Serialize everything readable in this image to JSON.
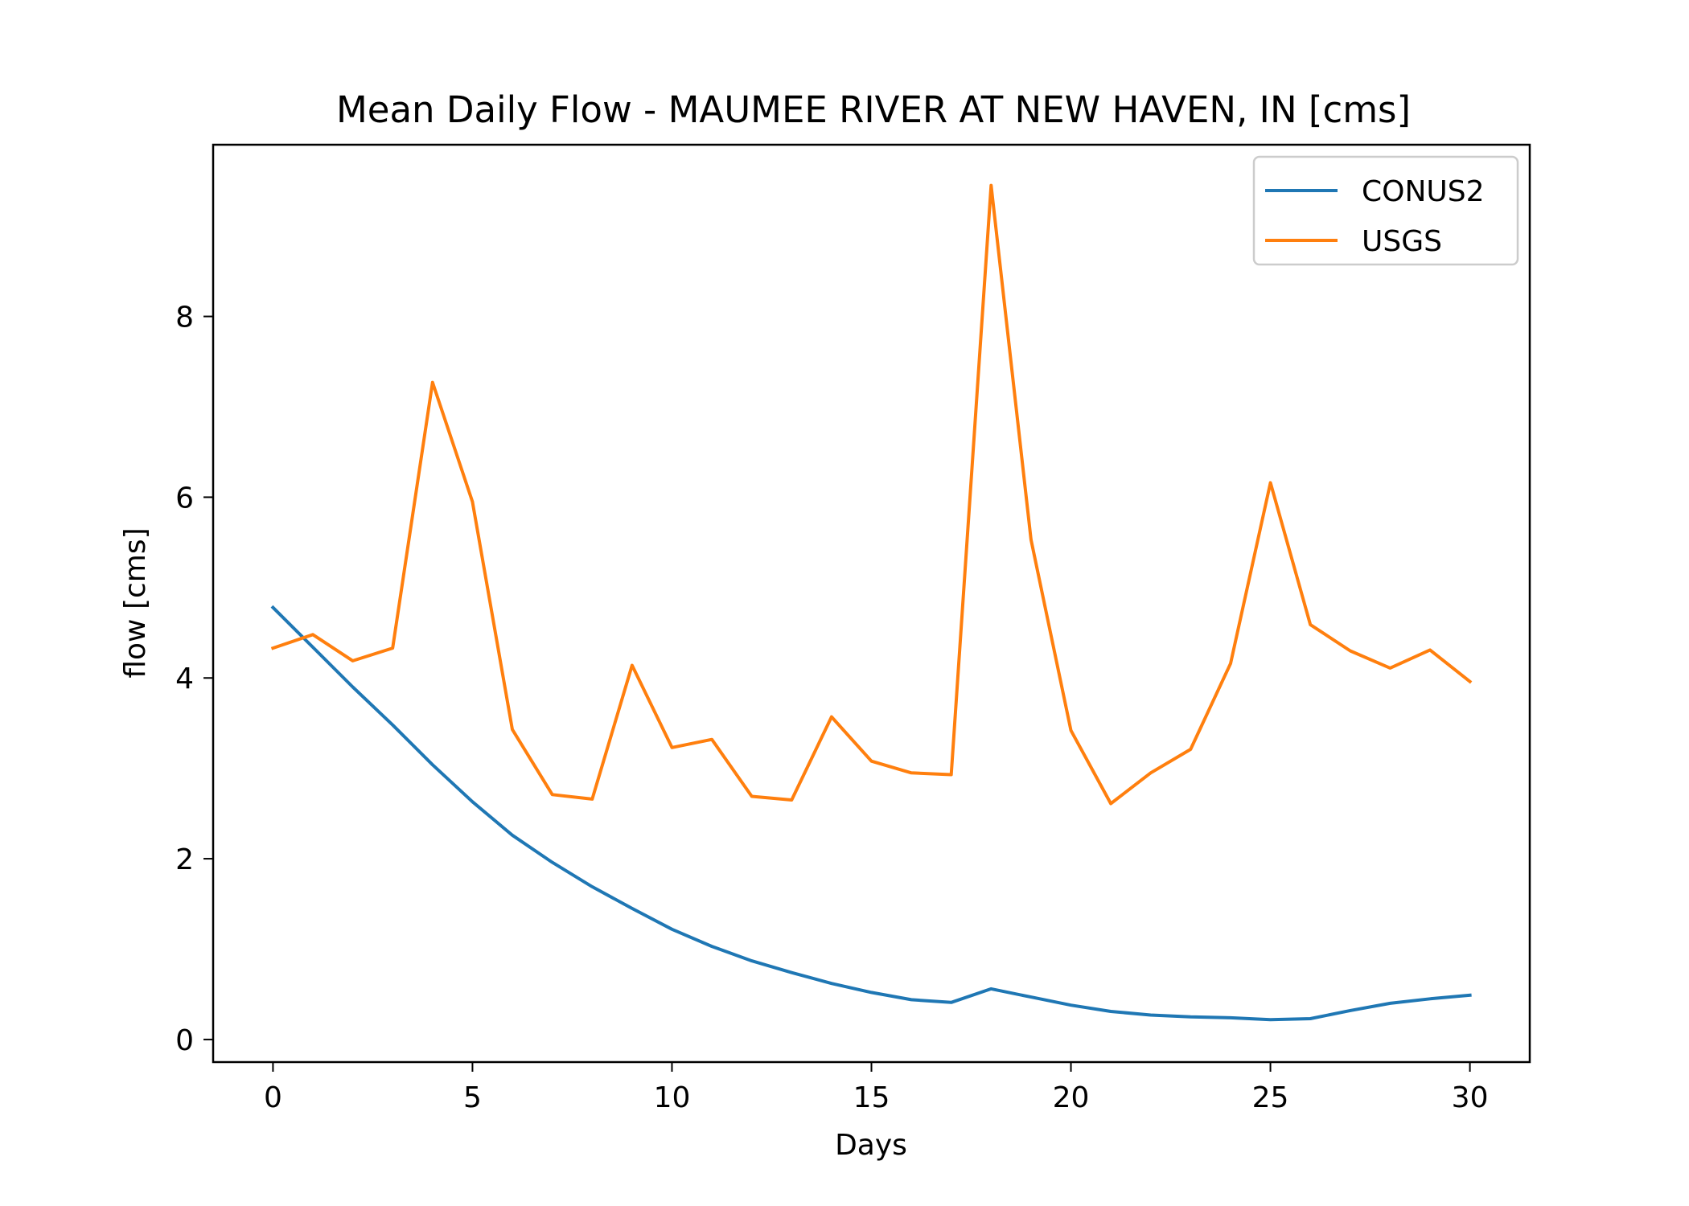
{
  "chart_data": {
    "type": "line",
    "title": "Mean Daily Flow - MAUMEE RIVER AT NEW HAVEN, IN [cms]",
    "xlabel": "Days",
    "ylabel": "flow [cms]",
    "xlim": [
      -1.5,
      31.5
    ],
    "ylim": [
      -0.25,
      9.9
    ],
    "xticks": [
      0,
      5,
      10,
      15,
      20,
      25,
      30
    ],
    "yticks": [
      0,
      2,
      4,
      6,
      8
    ],
    "grid": false,
    "legend_position": "top-right",
    "x": [
      0,
      1,
      2,
      3,
      4,
      5,
      6,
      7,
      8,
      9,
      10,
      11,
      12,
      13,
      14,
      15,
      16,
      17,
      18,
      19,
      20,
      21,
      22,
      23,
      24,
      25,
      26,
      27,
      28,
      29,
      30
    ],
    "series": [
      {
        "name": "CONUS2",
        "color": "#1f77b4",
        "values": [
          4.78,
          4.34,
          3.9,
          3.48,
          3.04,
          2.63,
          2.26,
          1.96,
          1.69,
          1.45,
          1.22,
          1.03,
          0.87,
          0.74,
          0.62,
          0.52,
          0.44,
          0.41,
          0.56,
          0.47,
          0.38,
          0.31,
          0.27,
          0.25,
          0.24,
          0.22,
          0.23,
          0.32,
          0.4,
          0.45,
          0.49
        ]
      },
      {
        "name": "USGS",
        "color": "#ff7f0e",
        "values": [
          4.33,
          4.48,
          4.19,
          4.33,
          7.27,
          5.95,
          3.43,
          2.71,
          2.66,
          4.14,
          3.23,
          3.32,
          2.69,
          2.65,
          3.57,
          3.08,
          2.95,
          2.93,
          9.45,
          5.53,
          3.42,
          2.61,
          2.95,
          3.21,
          4.16,
          6.16,
          4.59,
          4.3,
          4.11,
          4.31,
          3.96
        ]
      }
    ]
  }
}
